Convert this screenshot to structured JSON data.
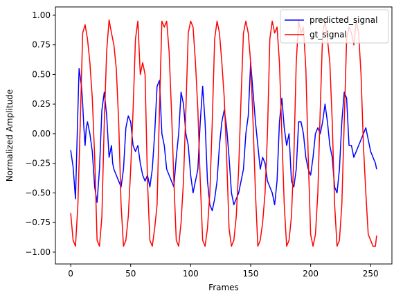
{
  "chart_data": {
    "type": "line",
    "xlabel": "Frames",
    "ylabel": "Normalized Amplitude",
    "xlim": [
      -12.75,
      267.75
    ],
    "ylim": [
      -1.1,
      1.07
    ],
    "xticks": [
      0,
      50,
      100,
      150,
      200,
      250
    ],
    "xtick_labels": [
      "0",
      "50",
      "100",
      "150",
      "200",
      "250"
    ],
    "yticks": [
      -1.0,
      -0.75,
      -0.5,
      -0.25,
      0.0,
      0.25,
      0.5,
      0.75,
      1.0
    ],
    "ytick_labels": [
      "−1.00",
      "−0.75",
      "−0.50",
      "−0.25",
      "0.00",
      "0.25",
      "0.50",
      "0.75",
      "1.00"
    ],
    "grid": false,
    "legend_position": "top-right",
    "series": [
      {
        "name": "predicted_signal",
        "color": "#0000ff",
        "points": [
          [
            0,
            -0.14
          ],
          [
            2,
            -0.28
          ],
          [
            4,
            -0.55
          ],
          [
            6,
            0.2
          ],
          [
            7,
            0.55
          ],
          [
            9,
            0.4
          ],
          [
            10,
            0.25
          ],
          [
            11,
            0.05
          ],
          [
            12,
            -0.1
          ],
          [
            13,
            0.05
          ],
          [
            14,
            0.1
          ],
          [
            16,
            0.0
          ],
          [
            18,
            -0.15
          ],
          [
            20,
            -0.45
          ],
          [
            22,
            -0.58
          ],
          [
            24,
            -0.3
          ],
          [
            26,
            0.2
          ],
          [
            28,
            0.35
          ],
          [
            30,
            0.15
          ],
          [
            32,
            -0.2
          ],
          [
            34,
            -0.1
          ],
          [
            35,
            -0.25
          ],
          [
            36,
            -0.3
          ],
          [
            38,
            -0.35
          ],
          [
            40,
            -0.4
          ],
          [
            42,
            -0.45
          ],
          [
            44,
            -0.3
          ],
          [
            46,
            0.05
          ],
          [
            48,
            0.15
          ],
          [
            50,
            0.1
          ],
          [
            52,
            -0.1
          ],
          [
            54,
            -0.15
          ],
          [
            56,
            -0.1
          ],
          [
            58,
            -0.25
          ],
          [
            60,
            -0.35
          ],
          [
            62,
            -0.4
          ],
          [
            64,
            -0.35
          ],
          [
            66,
            -0.45
          ],
          [
            68,
            -0.3
          ],
          [
            70,
            0.0
          ],
          [
            72,
            0.4
          ],
          [
            74,
            0.45
          ],
          [
            76,
            0.0
          ],
          [
            78,
            -0.1
          ],
          [
            80,
            -0.3
          ],
          [
            82,
            -0.35
          ],
          [
            84,
            -0.4
          ],
          [
            86,
            -0.45
          ],
          [
            88,
            -0.2
          ],
          [
            90,
            0.0
          ],
          [
            92,
            0.35
          ],
          [
            94,
            0.25
          ],
          [
            96,
            0.0
          ],
          [
            97,
            -0.05
          ],
          [
            98,
            -0.1
          ],
          [
            100,
            -0.35
          ],
          [
            102,
            -0.5
          ],
          [
            104,
            -0.4
          ],
          [
            106,
            -0.3
          ],
          [
            108,
            0.1
          ],
          [
            110,
            0.4
          ],
          [
            112,
            0.1
          ],
          [
            114,
            -0.4
          ],
          [
            116,
            -0.6
          ],
          [
            118,
            -0.65
          ],
          [
            120,
            -0.55
          ],
          [
            122,
            -0.4
          ],
          [
            124,
            -0.1
          ],
          [
            126,
            0.1
          ],
          [
            128,
            0.2
          ],
          [
            130,
            0.05
          ],
          [
            132,
            -0.2
          ],
          [
            134,
            -0.5
          ],
          [
            136,
            -0.6
          ],
          [
            138,
            -0.55
          ],
          [
            140,
            -0.5
          ],
          [
            142,
            -0.4
          ],
          [
            144,
            -0.3
          ],
          [
            146,
            0.0
          ],
          [
            148,
            0.15
          ],
          [
            150,
            0.6
          ],
          [
            152,
            0.35
          ],
          [
            154,
            0.1
          ],
          [
            156,
            -0.1
          ],
          [
            158,
            -0.3
          ],
          [
            160,
            -0.2
          ],
          [
            162,
            -0.25
          ],
          [
            164,
            -0.4
          ],
          [
            166,
            -0.45
          ],
          [
            168,
            -0.5
          ],
          [
            170,
            -0.6
          ],
          [
            172,
            -0.4
          ],
          [
            174,
            0.1
          ],
          [
            176,
            0.3
          ],
          [
            178,
            0.05
          ],
          [
            180,
            -0.1
          ],
          [
            182,
            0.0
          ],
          [
            184,
            -0.4
          ],
          [
            186,
            -0.45
          ],
          [
            188,
            -0.3
          ],
          [
            190,
            0.1
          ],
          [
            192,
            0.1
          ],
          [
            194,
            0.0
          ],
          [
            196,
            -0.2
          ],
          [
            198,
            -0.3
          ],
          [
            200,
            -0.35
          ],
          [
            202,
            -0.2
          ],
          [
            204,
            0.0
          ],
          [
            206,
            0.05
          ],
          [
            208,
            0.0
          ],
          [
            210,
            0.1
          ],
          [
            212,
            0.25
          ],
          [
            214,
            0.1
          ],
          [
            216,
            -0.1
          ],
          [
            218,
            -0.2
          ],
          [
            220,
            -0.45
          ],
          [
            222,
            -0.5
          ],
          [
            224,
            -0.3
          ],
          [
            226,
            0.1
          ],
          [
            228,
            0.35
          ],
          [
            230,
            0.3
          ],
          [
            232,
            -0.1
          ],
          [
            234,
            -0.1
          ],
          [
            236,
            -0.2
          ],
          [
            238,
            -0.15
          ],
          [
            240,
            -0.1
          ],
          [
            242,
            -0.05
          ],
          [
            244,
            0.0
          ],
          [
            246,
            0.05
          ],
          [
            248,
            -0.05
          ],
          [
            250,
            -0.15
          ],
          [
            252,
            -0.2
          ],
          [
            254,
            -0.25
          ],
          [
            255,
            -0.3
          ]
        ]
      },
      {
        "name": "gt_signal",
        "color": "#ff0000",
        "points": [
          [
            0,
            -0.67
          ],
          [
            2,
            -0.9
          ],
          [
            4,
            -0.95
          ],
          [
            6,
            -0.6
          ],
          [
            8,
            0.1
          ],
          [
            10,
            0.85
          ],
          [
            12,
            0.92
          ],
          [
            14,
            0.8
          ],
          [
            16,
            0.6
          ],
          [
            18,
            0.3
          ],
          [
            20,
            -0.2
          ],
          [
            22,
            -0.9
          ],
          [
            24,
            -0.95
          ],
          [
            26,
            -0.7
          ],
          [
            28,
            0.1
          ],
          [
            30,
            0.7
          ],
          [
            32,
            0.96
          ],
          [
            34,
            0.85
          ],
          [
            36,
            0.75
          ],
          [
            38,
            0.55
          ],
          [
            40,
            0.1
          ],
          [
            42,
            -0.6
          ],
          [
            44,
            -0.95
          ],
          [
            46,
            -0.9
          ],
          [
            48,
            -0.7
          ],
          [
            50,
            -0.3
          ],
          [
            52,
            0.2
          ],
          [
            54,
            0.8
          ],
          [
            56,
            0.95
          ],
          [
            58,
            0.5
          ],
          [
            60,
            0.6
          ],
          [
            62,
            0.5
          ],
          [
            64,
            -0.4
          ],
          [
            66,
            -0.9
          ],
          [
            68,
            -0.95
          ],
          [
            70,
            -0.8
          ],
          [
            72,
            -0.6
          ],
          [
            74,
            0.2
          ],
          [
            76,
            0.95
          ],
          [
            78,
            0.9
          ],
          [
            80,
            0.95
          ],
          [
            82,
            0.7
          ],
          [
            84,
            0.2
          ],
          [
            86,
            -0.4
          ],
          [
            88,
            -0.9
          ],
          [
            90,
            -0.95
          ],
          [
            92,
            -0.75
          ],
          [
            94,
            -0.4
          ],
          [
            96,
            0.2
          ],
          [
            98,
            0.85
          ],
          [
            100,
            0.95
          ],
          [
            102,
            0.9
          ],
          [
            104,
            0.6
          ],
          [
            106,
            0.2
          ],
          [
            108,
            -0.4
          ],
          [
            110,
            -0.9
          ],
          [
            112,
            -0.95
          ],
          [
            114,
            -0.8
          ],
          [
            116,
            -0.5
          ],
          [
            118,
            0.1
          ],
          [
            120,
            0.8
          ],
          [
            122,
            0.95
          ],
          [
            124,
            0.85
          ],
          [
            126,
            0.6
          ],
          [
            128,
            0.3
          ],
          [
            130,
            -0.2
          ],
          [
            132,
            -0.8
          ],
          [
            134,
            -0.95
          ],
          [
            136,
            -0.9
          ],
          [
            138,
            -0.7
          ],
          [
            140,
            -0.3
          ],
          [
            142,
            0.3
          ],
          [
            144,
            0.85
          ],
          [
            146,
            0.95
          ],
          [
            148,
            0.85
          ],
          [
            150,
            0.6
          ],
          [
            152,
            0.1
          ],
          [
            154,
            -0.5
          ],
          [
            156,
            -0.95
          ],
          [
            158,
            -0.9
          ],
          [
            160,
            -0.75
          ],
          [
            162,
            -0.5
          ],
          [
            164,
            0.0
          ],
          [
            166,
            0.8
          ],
          [
            168,
            0.95
          ],
          [
            170,
            0.85
          ],
          [
            172,
            0.9
          ],
          [
            174,
            0.6
          ],
          [
            176,
            0.0
          ],
          [
            178,
            -0.6
          ],
          [
            180,
            -0.95
          ],
          [
            182,
            -0.9
          ],
          [
            184,
            -0.7
          ],
          [
            186,
            -0.2
          ],
          [
            188,
            0.6
          ],
          [
            190,
            0.95
          ],
          [
            192,
            0.85
          ],
          [
            194,
            0.9
          ],
          [
            196,
            0.55
          ],
          [
            198,
            -0.2
          ],
          [
            200,
            -0.85
          ],
          [
            202,
            -0.95
          ],
          [
            204,
            -0.85
          ],
          [
            206,
            -0.5
          ],
          [
            208,
            0.2
          ],
          [
            210,
            0.85
          ],
          [
            212,
            0.95
          ],
          [
            214,
            0.8
          ],
          [
            216,
            0.6
          ],
          [
            218,
            0.1
          ],
          [
            220,
            -0.6
          ],
          [
            222,
            -0.95
          ],
          [
            224,
            -0.9
          ],
          [
            226,
            -0.6
          ],
          [
            228,
            0.1
          ],
          [
            230,
            0.8
          ],
          [
            232,
            0.9
          ],
          [
            234,
            0.85
          ],
          [
            236,
            0.75
          ],
          [
            238,
            0.95
          ],
          [
            240,
            0.85
          ],
          [
            242,
            0.5
          ],
          [
            244,
            -0.1
          ],
          [
            246,
            -0.5
          ],
          [
            248,
            -0.85
          ],
          [
            250,
            -0.9
          ],
          [
            252,
            -0.95
          ],
          [
            254,
            -0.95
          ],
          [
            255,
            -0.86
          ]
        ]
      }
    ]
  }
}
